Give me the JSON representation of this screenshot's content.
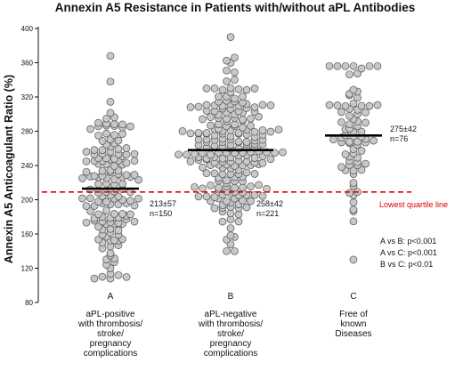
{
  "chart_data": {
    "type": "scatter",
    "title": "Annexin A5 Resistance in Patients with/without  aPL Antibodies",
    "ylabel": "Annexin A5 Anticoagulant Ratio (%)",
    "ylim": [
      80,
      400
    ],
    "yticks": [
      80,
      120,
      160,
      200,
      240,
      280,
      320,
      360,
      400
    ],
    "groups": [
      {
        "letter": "A",
        "category_lines": [
          "aPL-positive",
          "with thrombosis/",
          "stroke/",
          "pregnancy",
          "complications"
        ],
        "mean_line": 213,
        "stat_lines": [
          "213±57",
          "n=150"
        ],
        "n": 150,
        "min": 108,
        "max": 368
      },
      {
        "letter": "B",
        "category_lines": [
          "aPL-negative",
          "with thrombosis/",
          "stroke/",
          "pregnancy",
          "complications"
        ],
        "mean_line": 258,
        "stat_lines": [
          "258±42",
          "n=221"
        ],
        "n": 221,
        "min": 140,
        "max": 390
      },
      {
        "letter": "C",
        "category_lines": [
          "Free of",
          "known",
          "Diseases"
        ],
        "mean_line": 275,
        "stat_lines": [
          "275±42",
          "n=76"
        ],
        "n": 76,
        "min": 130,
        "max": 356
      }
    ],
    "reference_line": {
      "value": 209,
      "label": "Lowest quartile line",
      "color": "#e00000"
    },
    "pvalues": [
      "A vs B: p<0.001",
      "A vs C: p<0.001",
      "B vs C: p<0.01"
    ],
    "marker_color": "#c8c8c8",
    "marker_edge": "#555555",
    "grid": false
  }
}
